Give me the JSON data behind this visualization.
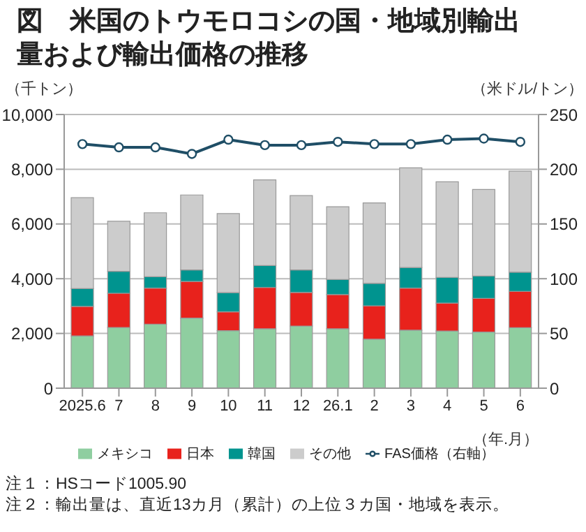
{
  "chart_data": {
    "type": "bar",
    "title": "図　米国のトウモロコシの国・地域別輸出量および輸出価格の推移",
    "ylabel": "（千トン）",
    "y2label": "（米ドル/トン）",
    "xlabel": "（年.月）",
    "categories": [
      "2025.6",
      "7",
      "8",
      "9",
      "10",
      "11",
      "12",
      "26.1",
      "2",
      "3",
      "4",
      "5",
      "6"
    ],
    "stacked": true,
    "series": [
      {
        "name": "メキシコ",
        "color": "#8fcea0",
        "values": [
          1910,
          2220,
          2340,
          2560,
          2100,
          2170,
          2270,
          2170,
          1790,
          2120,
          2090,
          2050,
          2210
        ]
      },
      {
        "name": "日本",
        "color": "#e8221c",
        "values": [
          1080,
          1250,
          1320,
          1340,
          690,
          1510,
          1230,
          1250,
          1220,
          1540,
          1020,
          1230,
          1330
        ]
      },
      {
        "name": "韓国",
        "color": "#00948f",
        "values": [
          650,
          800,
          410,
          420,
          700,
          800,
          820,
          550,
          820,
          750,
          940,
          820,
          700
        ]
      },
      {
        "name": "その他",
        "color": "#cccccc",
        "values": [
          3320,
          1830,
          2340,
          2740,
          2890,
          3130,
          2720,
          2660,
          2940,
          3640,
          3490,
          3160,
          3690
        ]
      },
      {
        "name": "FAS価格（右軸）",
        "type": "line",
        "axis": "y2",
        "color": "#1f4e66",
        "values": [
          223,
          220,
          220,
          214,
          227,
          222,
          222,
          225,
          223,
          223,
          227,
          228,
          225
        ]
      }
    ],
    "ylim": [
      0,
      10000
    ],
    "yticks": [
      0,
      {
        "value": 2000,
        "label": "2,000"
      },
      {
        "value": 4000,
        "label": "4,000"
      },
      {
        "value": 6000,
        "label": "6,000"
      },
      {
        "value": 8000,
        "label": "8,000"
      },
      {
        "value": 10000,
        "label": "10,000"
      }
    ],
    "y2lim": [
      0,
      250
    ],
    "y2ticks": [
      0,
      50,
      100,
      150,
      200,
      250
    ],
    "grid": "y",
    "legend": "bottom",
    "marker": "circle",
    "annotations": [
      "注１：HSコード1005.90",
      "注２：輸出量は、直近13カ月（累計）の上位３カ国・地域を表示。"
    ]
  }
}
